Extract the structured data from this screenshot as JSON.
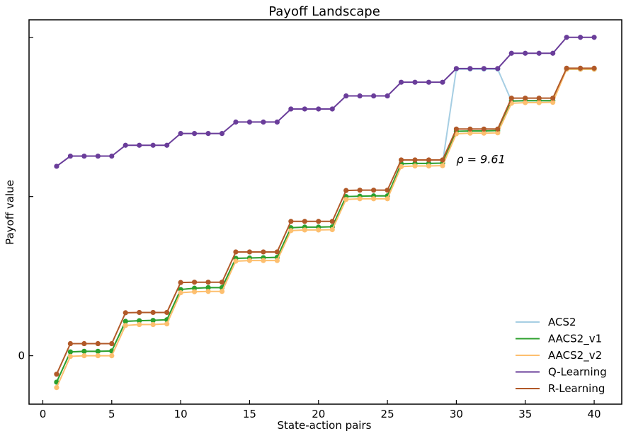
{
  "chart_data": {
    "type": "line",
    "title": "Payoff Landscape",
    "xlabel": "State-action pairs",
    "ylabel": "Payoff value",
    "xlim": [
      -1,
      42
    ],
    "ylim": [
      -15.2,
      105.5
    ],
    "x_ticks": [
      0,
      5,
      10,
      15,
      20,
      25,
      30,
      35,
      40
    ],
    "y_ticks": [
      0,
      50,
      100
    ],
    "y_tick_labels": [
      "0",
      "",
      ""
    ],
    "grid": false,
    "legend_position": "bottom-right",
    "annotation": {
      "text": "ρ = 9.61",
      "x": 30,
      "y": 60.5,
      "color": "#b5581f"
    },
    "x": [
      1,
      2,
      3,
      4,
      5,
      6,
      7,
      8,
      9,
      10,
      11,
      12,
      13,
      14,
      15,
      16,
      17,
      18,
      19,
      20,
      21,
      22,
      23,
      24,
      25,
      26,
      27,
      28,
      29,
      30,
      31,
      32,
      33,
      34,
      35,
      36,
      37,
      38,
      39,
      40
    ],
    "series": [
      {
        "name": "ACS2",
        "color": "#a6cee3",
        "values": [
          -8.3,
          1.2,
          1.4,
          1.4,
          1.5,
          10.8,
          11.0,
          11.1,
          11.3,
          20.8,
          21.2,
          21.4,
          21.4,
          30.6,
          30.7,
          30.8,
          30.9,
          40.2,
          40.4,
          40.4,
          40.5,
          50.0,
          50.1,
          50.2,
          50.2,
          60.3,
          60.4,
          60.4,
          60.5,
          90.0,
          90.0,
          90.0,
          90.0,
          80.0,
          80.1,
          80.1,
          80.1,
          90.0,
          90.0,
          90.0
        ]
      },
      {
        "name": "AACS2_v1",
        "color": "#2ca02c",
        "values": [
          -8.3,
          1.2,
          1.4,
          1.4,
          1.5,
          10.8,
          11.0,
          11.1,
          11.3,
          20.8,
          21.2,
          21.4,
          21.4,
          30.6,
          30.7,
          30.8,
          30.9,
          40.2,
          40.4,
          40.4,
          40.5,
          50.0,
          50.1,
          50.2,
          50.2,
          60.3,
          60.4,
          60.4,
          60.5,
          70.5,
          70.6,
          70.6,
          70.7,
          80.0,
          80.1,
          80.1,
          80.1,
          90.0,
          90.0,
          90.0
        ]
      },
      {
        "name": "AACS2_v2",
        "color": "#fdbf6f",
        "values": [
          -10.0,
          -0.2,
          0.0,
          0.0,
          0.0,
          9.5,
          9.8,
          9.8,
          10.0,
          19.8,
          20.1,
          20.2,
          20.2,
          29.7,
          29.9,
          29.9,
          29.9,
          39.3,
          39.5,
          39.5,
          39.6,
          49.1,
          49.3,
          49.3,
          49.3,
          59.4,
          59.6,
          59.6,
          59.7,
          69.7,
          69.9,
          69.9,
          70.0,
          79.3,
          79.5,
          79.5,
          79.6,
          90.0,
          90.0,
          90.0
        ]
      },
      {
        "name": "Q-Learning",
        "color": "#6a3d9a",
        "values": [
          59.5,
          62.7,
          62.7,
          62.7,
          62.7,
          66.1,
          66.1,
          66.1,
          66.1,
          69.8,
          69.8,
          69.8,
          69.8,
          73.4,
          73.4,
          73.4,
          73.4,
          77.5,
          77.5,
          77.5,
          77.5,
          81.6,
          81.6,
          81.6,
          81.6,
          85.9,
          85.9,
          85.9,
          85.9,
          90.2,
          90.2,
          90.2,
          90.2,
          95.0,
          95.0,
          95.0,
          95.0,
          100.0,
          100.0,
          100.0
        ]
      },
      {
        "name": "R-Learning",
        "color": "#b15928",
        "values": [
          -5.8,
          3.8,
          3.8,
          3.8,
          3.8,
          13.5,
          13.6,
          13.6,
          13.6,
          23.0,
          23.1,
          23.1,
          23.1,
          32.6,
          32.6,
          32.6,
          32.6,
          42.2,
          42.2,
          42.2,
          42.2,
          51.9,
          52.0,
          52.0,
          52.0,
          61.5,
          61.5,
          61.5,
          61.5,
          71.2,
          71.2,
          71.2,
          71.2,
          80.9,
          80.9,
          80.9,
          80.9,
          90.3,
          90.3,
          90.3
        ]
      }
    ]
  }
}
